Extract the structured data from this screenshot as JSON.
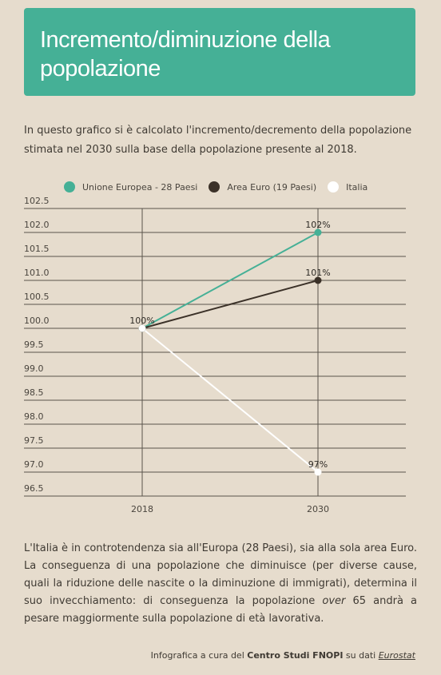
{
  "header": {
    "title": "Incremento/diminuzione della popolazione"
  },
  "intro": "In questo grafico si è calcolato l'incremento/decremento della popolazione stimata nel 2030 sulla base della popolazione presente al 2018.",
  "chart_data": {
    "type": "line",
    "x": [
      "2018",
      "2030"
    ],
    "yticks": [
      "102.5",
      "102.0",
      "101.5",
      "101.0",
      "100.5",
      "100.0",
      "99.5",
      "99.0",
      "98.5",
      "98.0",
      "97.5",
      "97.0",
      "96.5"
    ],
    "ylim": [
      96.5,
      102.5
    ],
    "grid": true,
    "legend_position": "top",
    "series": [
      {
        "name": "Unione Europea - 28 Paesi",
        "color": "#45b096",
        "values": [
          100,
          102
        ],
        "labels": [
          "100%",
          "102%"
        ]
      },
      {
        "name": "Area Euro (19 Paesi)",
        "color": "#3b3128",
        "values": [
          100,
          101
        ],
        "labels": [
          "",
          "101%"
        ]
      },
      {
        "name": "Italia",
        "color": "#ffffff",
        "values": [
          100,
          97
        ],
        "labels": [
          "",
          "97%"
        ]
      }
    ]
  },
  "body": {
    "p1": "L'Italia è in controtendenza sia all'Europa (28 Paesi), sia alla sola area Euro. La conseguenza di una popolazione che diminuisce (per diverse cause, quali la riduzione delle nascite o la diminuzione di immigrati), determina il suo invecchiamento: di conseguenza la popolazione ",
    "over": "over",
    "p2": " 65 andrà a pesare maggiormente sulla popolazione di età lavorativa."
  },
  "credit": {
    "prefix": "Infografica a cura del ",
    "org": "Centro Studi FNOPI",
    "mid": " su dati ",
    "source": "Eurostat"
  }
}
